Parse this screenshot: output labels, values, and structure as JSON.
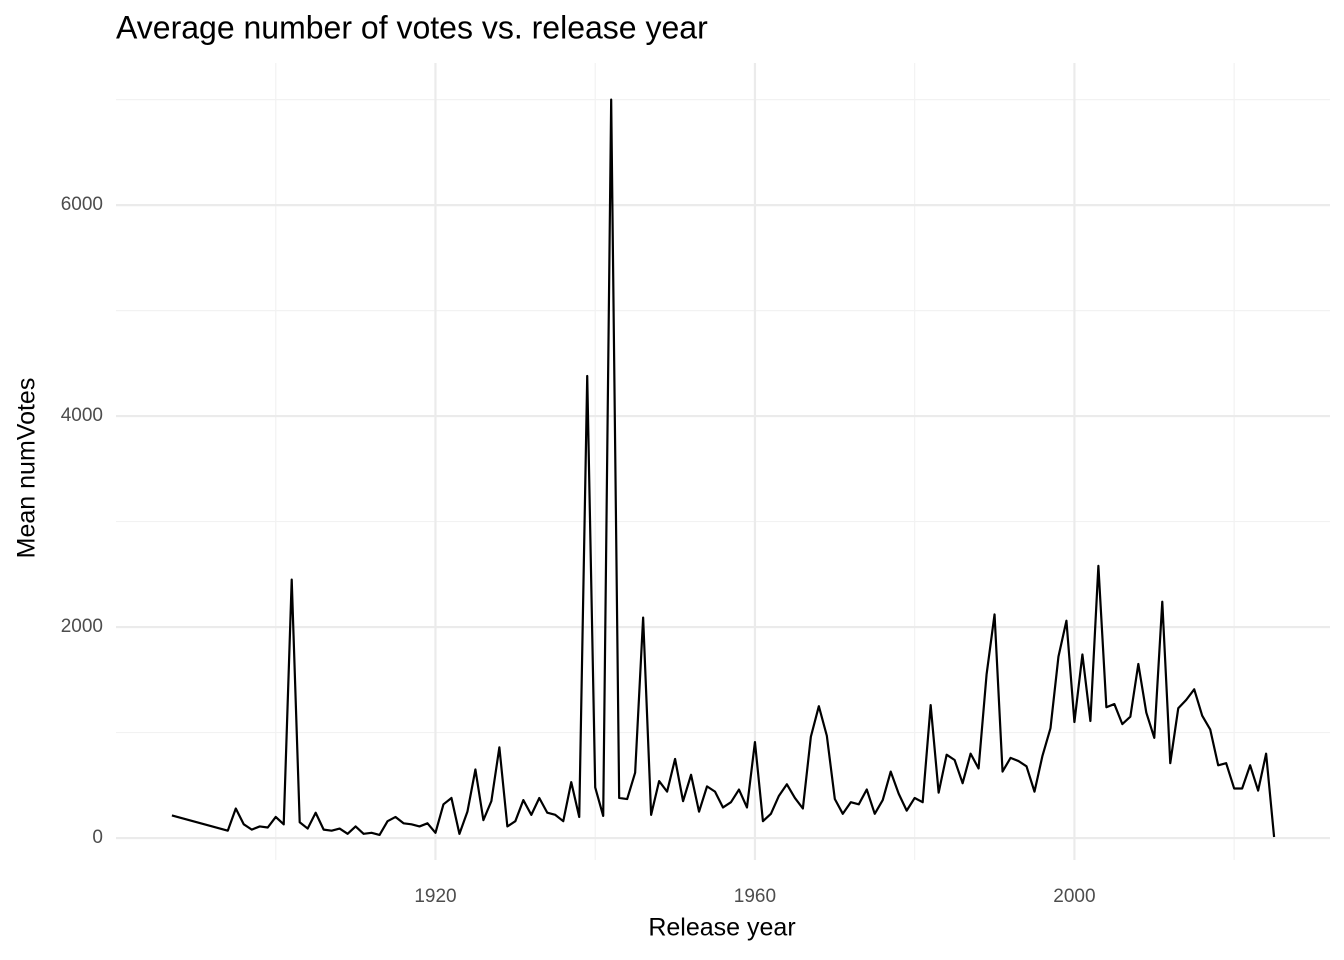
{
  "chart_data": {
    "type": "line",
    "title": "Average number of votes vs. release year",
    "x_label": "Release year",
    "y_label": "Mean numVotes",
    "color": "#000000",
    "grid": true,
    "xlim": [
      1880,
      2032
    ],
    "ylim": [
      -208,
      7347
    ],
    "xticks": [
      1920,
      1960,
      2000
    ],
    "yticks": [
      0,
      2000,
      4000,
      6000
    ],
    "x": [
      1887,
      1894,
      1895,
      1896,
      1897,
      1898,
      1899,
      1900,
      1901,
      1902,
      1903,
      1904,
      1905,
      1906,
      1907,
      1908,
      1909,
      1910,
      1911,
      1912,
      1913,
      1914,
      1915,
      1916,
      1917,
      1918,
      1919,
      1920,
      1921,
      1922,
      1923,
      1924,
      1925,
      1926,
      1927,
      1928,
      1929,
      1930,
      1931,
      1932,
      1933,
      1934,
      1935,
      1936,
      1937,
      1938,
      1939,
      1940,
      1941,
      1942,
      1943,
      1944,
      1945,
      1946,
      1947,
      1948,
      1949,
      1950,
      1951,
      1952,
      1953,
      1954,
      1955,
      1956,
      1957,
      1958,
      1959,
      1960,
      1961,
      1962,
      1963,
      1964,
      1965,
      1966,
      1967,
      1968,
      1969,
      1970,
      1971,
      1972,
      1973,
      1974,
      1975,
      1976,
      1977,
      1978,
      1979,
      1980,
      1981,
      1982,
      1983,
      1984,
      1985,
      1986,
      1987,
      1988,
      1989,
      1990,
      1991,
      1992,
      1993,
      1994,
      1995,
      1996,
      1997,
      1998,
      1999,
      2000,
      2001,
      2002,
      2003,
      2004,
      2005,
      2006,
      2007,
      2008,
      2009,
      2010,
      2011,
      2012,
      2013,
      2014,
      2015,
      2016,
      2017,
      2018,
      2019,
      2020,
      2021,
      2022,
      2023,
      2024,
      2025
    ],
    "values": [
      215,
      70,
      280,
      130,
      80,
      110,
      100,
      200,
      130,
      2450,
      150,
      90,
      240,
      80,
      70,
      90,
      40,
      110,
      40,
      50,
      30,
      160,
      200,
      140,
      130,
      110,
      140,
      50,
      320,
      380,
      40,
      250,
      650,
      170,
      350,
      860,
      110,
      160,
      360,
      220,
      380,
      240,
      220,
      160,
      530,
      200,
      4380,
      480,
      210,
      7000,
      380,
      370,
      620,
      2090,
      220,
      540,
      440,
      750,
      350,
      600,
      250,
      490,
      440,
      290,
      340,
      460,
      290,
      910,
      160,
      230,
      400,
      510,
      380,
      280,
      960,
      1250,
      970,
      370,
      230,
      340,
      320,
      460,
      230,
      360,
      630,
      420,
      260,
      380,
      340,
      1260,
      430,
      790,
      740,
      520,
      800,
      660,
      1550,
      2120,
      630,
      760,
      730,
      680,
      440,
      780,
      1040,
      1720,
      2060,
      1100,
      1740,
      1110,
      2580,
      1240,
      1270,
      1080,
      1150,
      1650,
      1190,
      950,
      2240,
      710,
      1230,
      1310,
      1410,
      1160,
      1030,
      690,
      710,
      470,
      470,
      690,
      450,
      800,
      10
    ]
  }
}
